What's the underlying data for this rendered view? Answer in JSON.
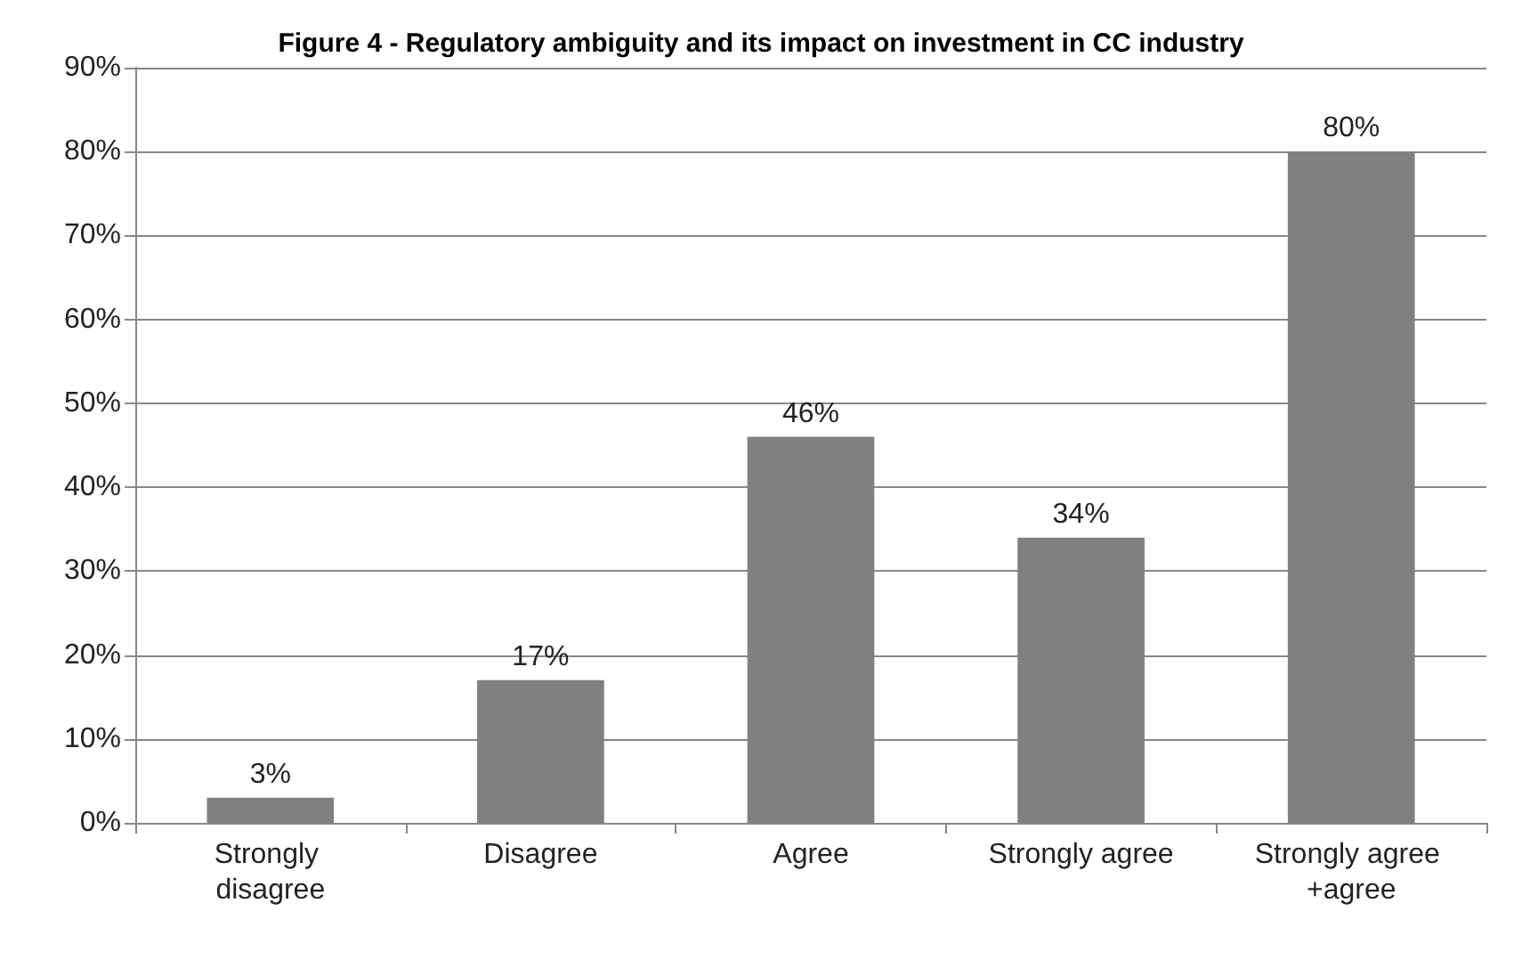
{
  "chart_data": {
    "type": "bar",
    "title": "Figure 4 - Regulatory ambiguity and its impact on investment in CC industry",
    "categories": [
      "Strongly disagree",
      "Disagree",
      "Agree",
      "Strongly agree",
      "Strongly agree +agree"
    ],
    "values": [
      3,
      17,
      46,
      34,
      80
    ],
    "color": "#808080",
    "value_labels": [
      "3%",
      "17%",
      "46%",
      "34%",
      "80%"
    ],
    "ylim": [
      0,
      90
    ],
    "yticks": [
      {
        "value": 0,
        "label": "0%"
      },
      {
        "value": 10,
        "label": "10%"
      },
      {
        "value": 20,
        "label": "20%"
      },
      {
        "value": 30,
        "label": "30%"
      },
      {
        "value": 40,
        "label": "40%"
      },
      {
        "value": 50,
        "label": "50%"
      },
      {
        "value": 60,
        "label": "60%"
      },
      {
        "value": 70,
        "label": "70%"
      },
      {
        "value": 80,
        "label": "80%"
      },
      {
        "value": 90,
        "label": "90%"
      }
    ],
    "grid": "y"
  }
}
